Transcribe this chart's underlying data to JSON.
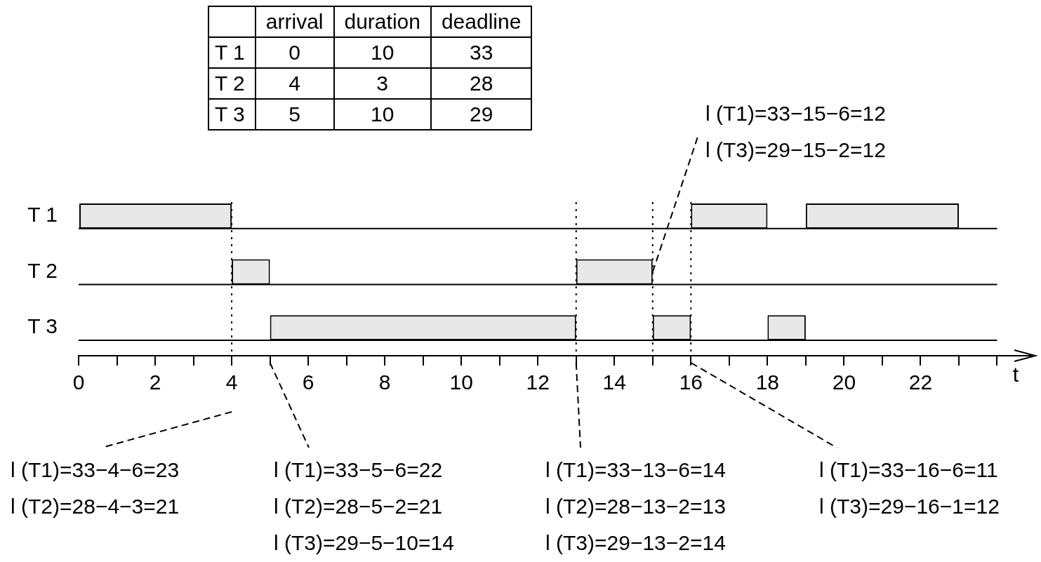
{
  "chart_data": [
    {
      "type": "bar",
      "orientation": "horizontal",
      "categories": [
        "T 1",
        "T 2",
        "T 3"
      ],
      "series": [
        {
          "color": "#e8e8e8",
          "base": [
            0,
            4,
            5
          ],
          "values": [
            4,
            1,
            8
          ]
        },
        {
          "color": "#e8e8e8",
          "base": [
            16,
            13,
            15
          ],
          "values": [
            2,
            2,
            1
          ]
        },
        {
          "color": "#e8e8e8",
          "base": [
            19,
            null,
            18
          ],
          "values": [
            4,
            null,
            1
          ]
        }
      ],
      "xlim": [
        0,
        25
      ],
      "xticks": [
        0,
        {
          "value": 1,
          "label": null
        },
        2,
        {
          "value": 3,
          "label": null
        },
        4,
        {
          "value": 5,
          "label": null
        },
        6,
        {
          "value": 7,
          "label": null
        },
        8,
        {
          "value": 9,
          "label": null
        },
        10,
        {
          "value": 11,
          "label": null
        },
        12,
        {
          "value": 13,
          "label": null
        },
        14,
        {
          "value": 15,
          "label": null
        },
        16,
        {
          "value": 17,
          "label": null
        },
        18,
        {
          "value": 19,
          "label": null
        },
        20,
        {
          "value": 21,
          "label": null
        },
        22,
        {
          "value": 23,
          "label": null
        },
        {
          "value": 24,
          "label": null
        }
      ],
      "xlabel": "t",
      "ref_lines": [
        {
          "axis": "x",
          "value": 4,
          "line_style": "dotted"
        },
        {
          "axis": "x",
          "value": 13,
          "line_style": "dotted"
        },
        {
          "axis": "x",
          "value": 15,
          "line_style": "dotted"
        },
        {
          "axis": "x",
          "value": 16,
          "line_style": "dotted"
        }
      ],
      "annotations": [
        "l (T1)=33−4−6=23\nl (T2)=28−4−3=21",
        "l (T1)=33−5−6=22\nl (T2)=28−5−2=21\nl (T3)=29−5−10=14",
        "l (T1)=33−13−6=14\nl (T2)=28−13−2=13\nl (T3)=29−13−2=14",
        "l (T1)=33−16−6=11\nl (T3)=29−16−1=12",
        {
          "text": "l (T1)=33−15−6=12\nl (T3)=29−15−2=12",
          "x": 15,
          "y": "T 2"
        }
      ]
    },
    {
      "type": "other",
      "annotations": [
        "arrival",
        "duration",
        "deadline",
        "T 1",
        "0",
        "10",
        "33",
        "T 2",
        "4",
        "3",
        "28",
        "T 3",
        "5",
        "10",
        "29"
      ]
    }
  ]
}
